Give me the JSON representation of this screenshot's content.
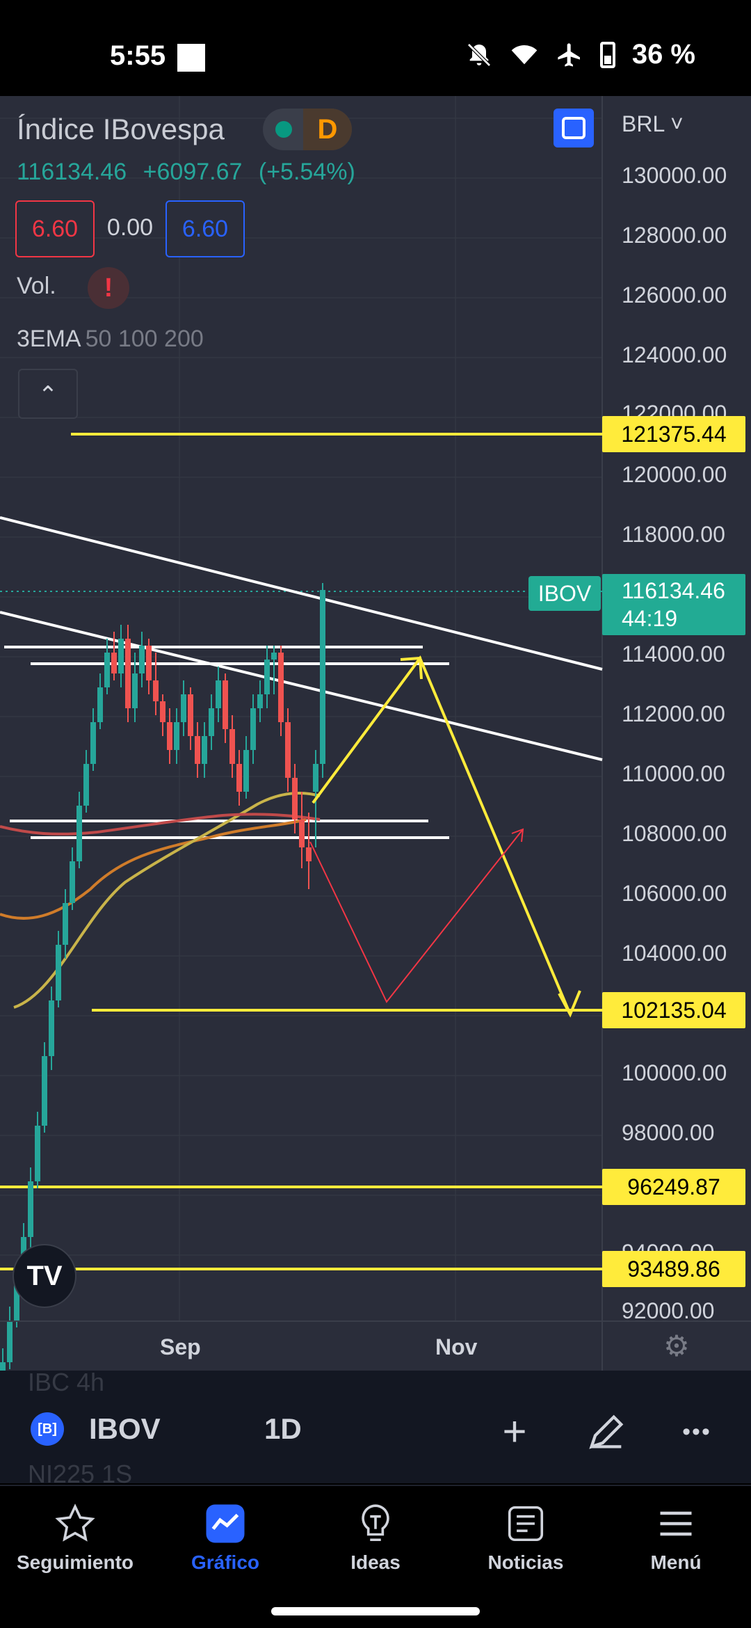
{
  "status_bar": {
    "time": "5:55",
    "battery": "36 %"
  },
  "chart": {
    "symbol_name": "Índice IBovespa",
    "resolution_badge": "D",
    "last_price": "116134.46",
    "change": "+6097.67",
    "change_pct": "(+5.54%)",
    "sell_price": "6.60",
    "spread": "0.00",
    "buy_price": "6.60",
    "volume_label": "Vol.",
    "warning_glyph": "!",
    "ema_label": "3EMA",
    "ema_periods": "50 100 200",
    "collapse_glyph": "⌃",
    "currency": "BRL ˅",
    "price_axis": [
      "130000.00",
      "128000.00",
      "126000.00",
      "124000.00",
      "122000.00",
      "120000.00",
      "118000.00",
      "114000.00",
      "112000.00",
      "110000.00",
      "108000.00",
      "106000.00",
      "104000.00",
      "100000.00",
      "98000.00",
      "94000.00",
      "92000.00"
    ],
    "horizontal_levels": [
      "121375.44",
      "102135.04",
      "96249.87",
      "93489.86"
    ],
    "current_tag": {
      "symbol": "IBOV",
      "price": "116134.46",
      "countdown": "44:19"
    },
    "time_axis": [
      "Sep",
      "Nov"
    ],
    "logo_text": "TV",
    "colors": {
      "bull": "#26a69a",
      "bear": "#ef5350",
      "level": "#ffeb3b",
      "ema50": "#c9b44a",
      "ema100": "#d07c2a",
      "ema200": "#c04a4a"
    }
  },
  "chart_data": {
    "type": "candlestick",
    "symbol": "IBOV",
    "interval": "1D",
    "last": 116134.46,
    "change": 6097.67,
    "change_pct": 5.54,
    "ylim": [
      92000,
      130000
    ],
    "levels": [
      121375.44,
      102135.04,
      96249.87,
      93489.86
    ],
    "x_ticks": [
      "Sep",
      "Nov"
    ]
  },
  "toolbar": {
    "ghost_top": "IBC              4h",
    "ghost_bottom": "NI225            1S",
    "symbol_icon": "[B]",
    "symbol": "IBOV",
    "interval": "1D",
    "add_glyph": "+",
    "draw_icon": "pencil-icon",
    "more_glyph": "•••"
  },
  "nav": [
    {
      "label": "Seguimiento",
      "icon": "star-icon"
    },
    {
      "label": "Gráfico",
      "icon": "chart-icon",
      "active": true
    },
    {
      "label": "Ideas",
      "icon": "bulb-icon"
    },
    {
      "label": "Noticias",
      "icon": "news-icon"
    },
    {
      "label": "Menú",
      "icon": "menu-icon"
    }
  ]
}
